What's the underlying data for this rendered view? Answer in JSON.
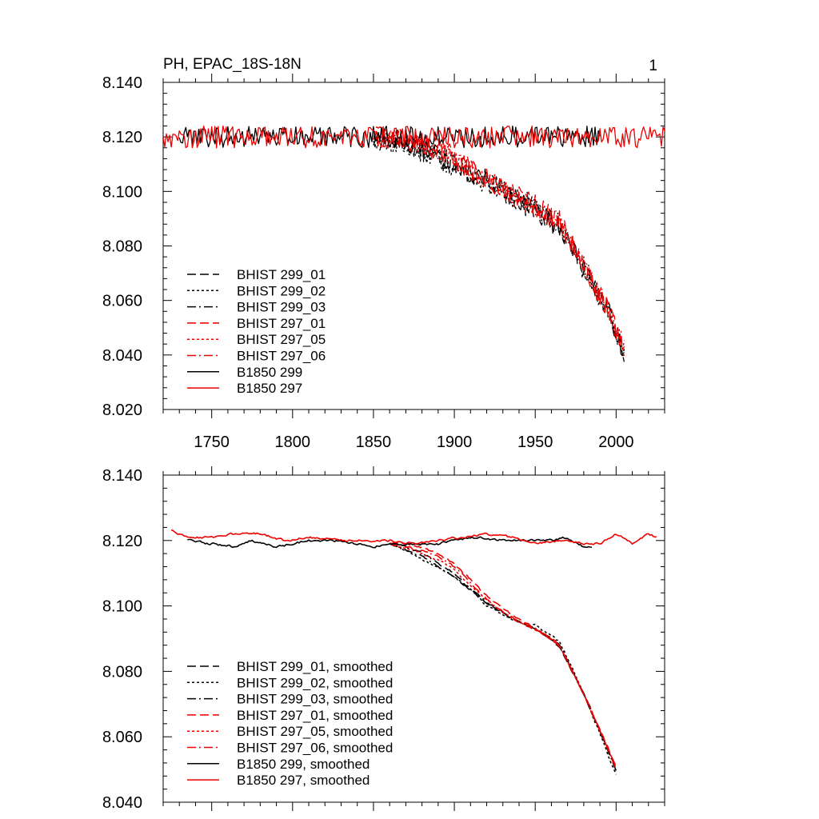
{
  "figure": {
    "title_left": "PH, EPAC_18S-18N",
    "title_right": "1"
  },
  "colors": {
    "black": "#000000",
    "red": "#ee0000"
  },
  "chart_data": [
    {
      "type": "line",
      "xlim": [
        1720,
        2030
      ],
      "ylim": [
        8.02,
        8.14
      ],
      "yticks": [
        8.14,
        8.12,
        8.1,
        8.08,
        8.06,
        8.04,
        8.02
      ],
      "ytick_labels": [
        "8.140",
        "8.120",
        "8.100",
        "8.080",
        "8.060",
        "8.040",
        "8.020"
      ],
      "xticks": [
        1750,
        1800,
        1850,
        1900,
        1950,
        2000
      ],
      "xtick_labels": [
        "1750",
        "1800",
        "1850",
        "1900",
        "1950",
        "2000"
      ],
      "grid": false,
      "legend_position": "bottom-left",
      "noise": 0.004,
      "series": [
        {
          "name": "BHIST 299_01",
          "color": "black",
          "dash": "dash",
          "start": 1850,
          "end": 2005,
          "points": [
            [
              1850,
              8.119
            ],
            [
              1870,
              8.118
            ],
            [
              1890,
              8.113
            ],
            [
              1910,
              8.107
            ],
            [
              1930,
              8.1
            ],
            [
              1950,
              8.093
            ],
            [
              1965,
              8.086
            ],
            [
              1975,
              8.077
            ],
            [
              1985,
              8.066
            ],
            [
              1995,
              8.056
            ],
            [
              2005,
              8.041
            ]
          ]
        },
        {
          "name": "BHIST 299_02",
          "color": "black",
          "dash": "dot",
          "start": 1850,
          "end": 2005,
          "points": [
            [
              1850,
              8.119
            ],
            [
              1870,
              8.117
            ],
            [
              1890,
              8.112
            ],
            [
              1910,
              8.106
            ],
            [
              1930,
              8.1
            ],
            [
              1950,
              8.094
            ],
            [
              1965,
              8.087
            ],
            [
              1975,
              8.078
            ],
            [
              1985,
              8.066
            ],
            [
              1995,
              8.055
            ],
            [
              2005,
              8.04
            ]
          ]
        },
        {
          "name": "BHIST 299_03",
          "color": "black",
          "dash": "dashdot",
          "start": 1850,
          "end": 2005,
          "points": [
            [
              1850,
              8.12
            ],
            [
              1870,
              8.118
            ],
            [
              1890,
              8.113
            ],
            [
              1910,
              8.107
            ],
            [
              1930,
              8.101
            ],
            [
              1950,
              8.094
            ],
            [
              1965,
              8.088
            ],
            [
              1975,
              8.078
            ],
            [
              1985,
              8.067
            ],
            [
              1995,
              8.056
            ],
            [
              2005,
              8.041
            ]
          ]
        },
        {
          "name": "BHIST 297_01",
          "color": "red",
          "dash": "dash",
          "start": 1850,
          "end": 2005,
          "points": [
            [
              1850,
              8.12
            ],
            [
              1870,
              8.119
            ],
            [
              1890,
              8.116
            ],
            [
              1910,
              8.109
            ],
            [
              1930,
              8.101
            ],
            [
              1950,
              8.095
            ],
            [
              1965,
              8.089
            ],
            [
              1975,
              8.079
            ],
            [
              1985,
              8.067
            ],
            [
              1995,
              8.057
            ],
            [
              2005,
              8.042
            ]
          ]
        },
        {
          "name": "BHIST 297_05",
          "color": "red",
          "dash": "dot",
          "start": 1850,
          "end": 2005,
          "points": [
            [
              1850,
              8.12
            ],
            [
              1870,
              8.119
            ],
            [
              1890,
              8.114
            ],
            [
              1910,
              8.108
            ],
            [
              1930,
              8.101
            ],
            [
              1950,
              8.094
            ],
            [
              1965,
              8.088
            ],
            [
              1975,
              8.078
            ],
            [
              1985,
              8.067
            ],
            [
              1995,
              8.056
            ],
            [
              2005,
              8.042
            ]
          ]
        },
        {
          "name": "BHIST 297_06",
          "color": "red",
          "dash": "dashdot",
          "start": 1850,
          "end": 2005,
          "points": [
            [
              1850,
              8.12
            ],
            [
              1870,
              8.119
            ],
            [
              1890,
              8.115
            ],
            [
              1910,
              8.108
            ],
            [
              1930,
              8.101
            ],
            [
              1950,
              8.095
            ],
            [
              1965,
              8.088
            ],
            [
              1975,
              8.079
            ],
            [
              1985,
              8.068
            ],
            [
              1995,
              8.057
            ],
            [
              2005,
              8.042
            ]
          ]
        },
        {
          "name": "B1850 299",
          "color": "black",
          "dash": "solid",
          "start": 1730,
          "end": 1990,
          "points": [
            [
              1730,
              8.12
            ],
            [
              1990,
              8.12
            ]
          ]
        },
        {
          "name": "B1850 297",
          "color": "red",
          "dash": "solid",
          "start": 1720,
          "end": 2030,
          "points": [
            [
              1720,
              8.12
            ],
            [
              2030,
              8.12
            ]
          ]
        }
      ]
    },
    {
      "type": "line",
      "xlim": [
        1720,
        2030
      ],
      "ylim": [
        8.04,
        8.14
      ],
      "yticks": [
        8.14,
        8.12,
        8.1,
        8.08,
        8.06,
        8.04
      ],
      "ytick_labels": [
        "8.140",
        "8.120",
        "8.100",
        "8.080",
        "8.060",
        "8.040"
      ],
      "xticks": [
        1750,
        1800,
        1850,
        1900,
        1950,
        2000
      ],
      "xtick_labels": [],
      "grid": false,
      "legend_position": "bottom-left",
      "noise": 0.0006,
      "series": [
        {
          "name": "BHIST 299_01, smoothed",
          "color": "black",
          "dash": "dash",
          "start": 1860,
          "end": 2000,
          "points": [
            [
              1860,
              8.119
            ],
            [
              1870,
              8.118
            ],
            [
              1880,
              8.116
            ],
            [
              1890,
              8.113
            ],
            [
              1900,
              8.11
            ],
            [
              1910,
              8.105
            ],
            [
              1920,
              8.101
            ],
            [
              1930,
              8.098
            ],
            [
              1940,
              8.095
            ],
            [
              1950,
              8.093
            ],
            [
              1960,
              8.09
            ],
            [
              1965,
              8.087
            ],
            [
              1970,
              8.083
            ],
            [
              1980,
              8.073
            ],
            [
              1990,
              8.062
            ],
            [
              2000,
              8.05
            ]
          ]
        },
        {
          "name": "BHIST 299_02, smoothed",
          "color": "black",
          "dash": "dot",
          "start": 1860,
          "end": 2000,
          "points": [
            [
              1860,
              8.119
            ],
            [
              1870,
              8.117
            ],
            [
              1880,
              8.114
            ],
            [
              1890,
              8.112
            ],
            [
              1900,
              8.109
            ],
            [
              1910,
              8.105
            ],
            [
              1920,
              8.1
            ],
            [
              1930,
              8.097
            ],
            [
              1940,
              8.095
            ],
            [
              1950,
              8.094
            ],
            [
              1960,
              8.091
            ],
            [
              1965,
              8.089
            ],
            [
              1970,
              8.084
            ],
            [
              1980,
              8.073
            ],
            [
              1990,
              8.061
            ],
            [
              2000,
              8.048
            ]
          ]
        },
        {
          "name": "BHIST 299_03, smoothed",
          "color": "black",
          "dash": "dashdot",
          "start": 1860,
          "end": 2000,
          "points": [
            [
              1860,
              8.119
            ],
            [
              1870,
              8.117
            ],
            [
              1880,
              8.115
            ],
            [
              1890,
              8.112
            ],
            [
              1900,
              8.109
            ],
            [
              1910,
              8.105
            ],
            [
              1920,
              8.101
            ],
            [
              1930,
              8.098
            ],
            [
              1940,
              8.095
            ],
            [
              1950,
              8.093
            ],
            [
              1960,
              8.09
            ],
            [
              1965,
              8.088
            ],
            [
              1970,
              8.083
            ],
            [
              1980,
              8.073
            ],
            [
              1990,
              8.062
            ],
            [
              2000,
              8.05
            ]
          ]
        },
        {
          "name": "BHIST 297_01, smoothed",
          "color": "red",
          "dash": "dash",
          "start": 1860,
          "end": 2000,
          "points": [
            [
              1860,
              8.119
            ],
            [
              1870,
              8.119
            ],
            [
              1880,
              8.118
            ],
            [
              1890,
              8.116
            ],
            [
              1900,
              8.113
            ],
            [
              1910,
              8.108
            ],
            [
              1920,
              8.103
            ],
            [
              1930,
              8.099
            ],
            [
              1940,
              8.096
            ],
            [
              1950,
              8.093
            ],
            [
              1960,
              8.09
            ],
            [
              1965,
              8.088
            ],
            [
              1970,
              8.083
            ],
            [
              1980,
              8.073
            ],
            [
              1990,
              8.062
            ],
            [
              2000,
              8.051
            ]
          ]
        },
        {
          "name": "BHIST 297_05, smoothed",
          "color": "red",
          "dash": "dot",
          "start": 1860,
          "end": 2000,
          "points": [
            [
              1860,
              8.119
            ],
            [
              1870,
              8.118
            ],
            [
              1880,
              8.116
            ],
            [
              1890,
              8.114
            ],
            [
              1900,
              8.111
            ],
            [
              1910,
              8.106
            ],
            [
              1920,
              8.102
            ],
            [
              1930,
              8.098
            ],
            [
              1940,
              8.095
            ],
            [
              1950,
              8.093
            ],
            [
              1960,
              8.09
            ],
            [
              1965,
              8.088
            ],
            [
              1970,
              8.083
            ],
            [
              1980,
              8.073
            ],
            [
              1990,
              8.062
            ],
            [
              2000,
              8.05
            ]
          ]
        },
        {
          "name": "BHIST 297_06, smoothed",
          "color": "red",
          "dash": "dashdot",
          "start": 1860,
          "end": 2000,
          "points": [
            [
              1860,
              8.119
            ],
            [
              1870,
              8.118
            ],
            [
              1880,
              8.117
            ],
            [
              1890,
              8.115
            ],
            [
              1900,
              8.112
            ],
            [
              1910,
              8.107
            ],
            [
              1920,
              8.102
            ],
            [
              1930,
              8.098
            ],
            [
              1940,
              8.095
            ],
            [
              1950,
              8.093
            ],
            [
              1960,
              8.09
            ],
            [
              1965,
              8.088
            ],
            [
              1970,
              8.083
            ],
            [
              1980,
              8.073
            ],
            [
              1990,
              8.062
            ],
            [
              2000,
              8.05
            ]
          ]
        },
        {
          "name": "B1850 299, smoothed",
          "color": "black",
          "dash": "solid",
          "start": 1735,
          "end": 1985,
          "points": [
            [
              1735,
              8.12
            ],
            [
              1750,
              8.119
            ],
            [
              1765,
              8.118
            ],
            [
              1775,
              8.12
            ],
            [
              1790,
              8.118
            ],
            [
              1800,
              8.119
            ],
            [
              1810,
              8.12
            ],
            [
              1825,
              8.12
            ],
            [
              1840,
              8.119
            ],
            [
              1850,
              8.118
            ],
            [
              1860,
              8.119
            ],
            [
              1875,
              8.119
            ],
            [
              1890,
              8.119
            ],
            [
              1900,
              8.12
            ],
            [
              1915,
              8.121
            ],
            [
              1930,
              8.12
            ],
            [
              1945,
              8.12
            ],
            [
              1960,
              8.12
            ],
            [
              1970,
              8.121
            ],
            [
              1980,
              8.118
            ],
            [
              1985,
              8.118
            ]
          ]
        },
        {
          "name": "B1850 297, smoothed",
          "color": "red",
          "dash": "solid",
          "start": 1725,
          "end": 2025,
          "points": [
            [
              1725,
              8.123
            ],
            [
              1735,
              8.121
            ],
            [
              1750,
              8.121
            ],
            [
              1765,
              8.122
            ],
            [
              1780,
              8.122
            ],
            [
              1795,
              8.12
            ],
            [
              1810,
              8.121
            ],
            [
              1830,
              8.12
            ],
            [
              1845,
              8.12
            ],
            [
              1860,
              8.12
            ],
            [
              1875,
              8.119
            ],
            [
              1890,
              8.12
            ],
            [
              1905,
              8.121
            ],
            [
              1920,
              8.122
            ],
            [
              1935,
              8.121
            ],
            [
              1950,
              8.119
            ],
            [
              1965,
              8.12
            ],
            [
              1980,
              8.119
            ],
            [
              1990,
              8.119
            ],
            [
              2000,
              8.122
            ],
            [
              2010,
              8.119
            ],
            [
              2020,
              8.122
            ],
            [
              2025,
              8.121
            ]
          ]
        }
      ]
    }
  ]
}
